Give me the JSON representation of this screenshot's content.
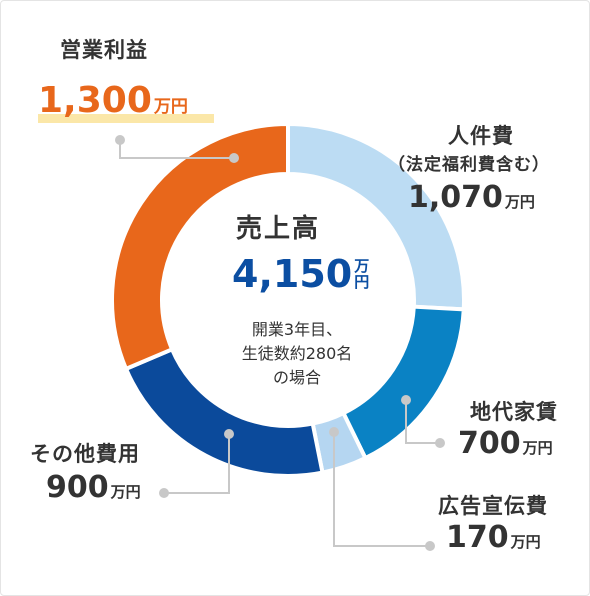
{
  "chart_data": {
    "type": "pie",
    "donut": true,
    "unit": "万円",
    "center": {
      "title": "売上高",
      "total": "4,150",
      "total_unit": "万円",
      "note_line1": "開業3年目、",
      "note_line2": "生徒数約280名",
      "note_line3": "の場合"
    },
    "slices": [
      {
        "label": "人件費",
        "sublabel": "（法定福利費含む）",
        "value": 1070,
        "value_text": "1,070",
        "unit": "万円",
        "color": "#bcdcf3"
      },
      {
        "label": "地代家賃",
        "value": 700,
        "value_text": "700",
        "unit": "万円",
        "color": "#0a82c4"
      },
      {
        "label": "広告宣伝費",
        "value": 170,
        "value_text": "170",
        "unit": "万円",
        "color": "#b5d6f1"
      },
      {
        "label": "その他費用",
        "value": 900,
        "value_text": "900",
        "unit": "万円",
        "color": "#0b4a9b"
      },
      {
        "label": "営業利益",
        "value": 1300,
        "value_text": "1,300",
        "unit": "万円",
        "color": "#e8671b"
      }
    ],
    "highlight_color": "#fbe7a8",
    "leader_color": "#c8c8c8"
  }
}
